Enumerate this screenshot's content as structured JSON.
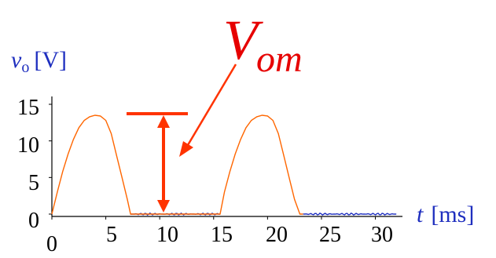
{
  "chart_data": {
    "type": "line",
    "ylabel": {
      "var": "v",
      "sub": "o",
      "unit": "[V]"
    },
    "xlabel": {
      "var": "t",
      "unit": "[ms]"
    },
    "xticks": [
      "0",
      "5",
      "10",
      "15",
      "20",
      "25",
      "30"
    ],
    "yticks": [
      "0",
      "5",
      "10",
      "15"
    ],
    "xlim": [
      0,
      33
    ],
    "ylim": [
      0,
      15.5
    ],
    "annotation": {
      "main": "V",
      "sub": "om",
      "level": 13.5
    },
    "colors": {
      "positive": "#ff6600",
      "zero": "#1f2fbf",
      "annotation": "#ff3300",
      "label": "#1f2fbf",
      "bigtext": "#e60000"
    },
    "series": [
      {
        "x": [
          0,
          0.5,
          1,
          1.5,
          2,
          2.5,
          3,
          3.5,
          4,
          4.5,
          5,
          5.5,
          6,
          6.5,
          7,
          7.3,
          8,
          10,
          12,
          14,
          15.6,
          16,
          16.5,
          17,
          17.5,
          18,
          18.5,
          19,
          19.5,
          20,
          20.5,
          21,
          21.5,
          22,
          22.5,
          23,
          23.3,
          24,
          26,
          28,
          30,
          32
        ],
        "y": [
          0,
          3,
          5.8,
          8.2,
          10.2,
          11.8,
          12.8,
          13.3,
          13.5,
          13.4,
          12.8,
          11,
          8,
          5,
          2,
          0,
          0,
          0,
          0,
          0,
          0,
          3,
          5.8,
          8.2,
          10.2,
          11.8,
          12.8,
          13.3,
          13.5,
          13.4,
          12.8,
          11,
          8,
          5,
          2,
          0,
          0,
          0,
          0,
          0,
          0,
          0
        ]
      }
    ]
  }
}
